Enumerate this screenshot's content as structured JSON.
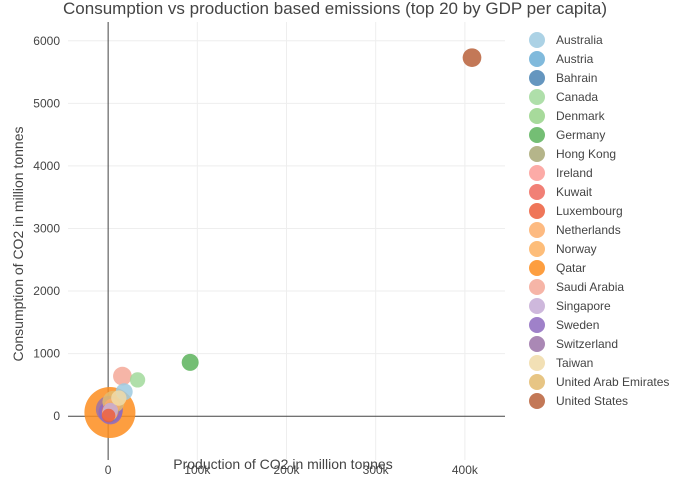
{
  "chart_data": {
    "type": "scatter",
    "title": "Consumption vs production based emissions (top 20 by GDP per capita)",
    "xlabel": "Production of CO2 in million tonnes",
    "ylabel": "Consumption of CO2 in million tonnes",
    "xlim": [
      -45000,
      445000
    ],
    "ylim": [
      -700,
      6300
    ],
    "xticks": [
      0,
      100000,
      200000,
      300000,
      400000
    ],
    "xtick_labels": [
      "0",
      "100k",
      "200k",
      "300k",
      "400k"
    ],
    "yticks": [
      0,
      1000,
      2000,
      3000,
      4000,
      5000,
      6000
    ],
    "ytick_labels": [
      "0",
      "1000",
      "2000",
      "3000",
      "4000",
      "5000",
      "6000"
    ],
    "grid": true,
    "legend_position": "right",
    "series": [
      {
        "name": "Australia",
        "color": "#9ecae1",
        "x": 18000,
        "y": 390,
        "size": 1.0
      },
      {
        "name": "Austria",
        "color": "#6baed6",
        "x": 3000,
        "y": 90,
        "size": 0.9
      },
      {
        "name": "Bahrain",
        "color": "#4a84b4",
        "x": 1500,
        "y": 30,
        "size": 0.9
      },
      {
        "name": "Canada",
        "color": "#a1d99b",
        "x": 33000,
        "y": 580,
        "size": 0.9
      },
      {
        "name": "Denmark",
        "color": "#98d48a",
        "x": 2000,
        "y": 60,
        "size": 0.9
      },
      {
        "name": "Germany",
        "color": "#5cb35c",
        "x": 92000,
        "y": 860,
        "size": 1.0
      },
      {
        "name": "Hong Kong",
        "color": "#a8a876",
        "x": 4000,
        "y": 120,
        "size": 0.9
      },
      {
        "name": "Ireland",
        "color": "#fc9c98",
        "x": 1500,
        "y": 40,
        "size": 0.9
      },
      {
        "name": "Kuwait",
        "color": "#ee6a5e",
        "x": 2500,
        "y": 80,
        "size": 1.0
      },
      {
        "name": "Luxembourg",
        "color": "#ec5e3c",
        "x": 500,
        "y": 10,
        "size": 0.8
      },
      {
        "name": "Netherlands",
        "color": "#fdae6b",
        "x": 4500,
        "y": 160,
        "size": 0.9
      },
      {
        "name": "Norway",
        "color": "#fdb163",
        "x": 2000,
        "y": 50,
        "size": 0.9
      },
      {
        "name": "Qatar",
        "color": "#fd8d1e",
        "x": 2000,
        "y": 60,
        "size": 3.0
      },
      {
        "name": "Saudi Arabia",
        "color": "#f4a898",
        "x": 16000,
        "y": 640,
        "size": 1.1
      },
      {
        "name": "Singapore",
        "color": "#c5acd6",
        "x": 2500,
        "y": 90,
        "size": 0.9
      },
      {
        "name": "Sweden",
        "color": "#8e6bbf",
        "x": 2500,
        "y": 60,
        "size": 1.4
      },
      {
        "name": "Switzerland",
        "color": "#9b73a8",
        "x": 1500,
        "y": 110,
        "size": 1.6
      },
      {
        "name": "Taiwan",
        "color": "#f0dba8",
        "x": 12000,
        "y": 290,
        "size": 0.9
      },
      {
        "name": "United Arab Emirates",
        "color": "#e3bb6e",
        "x": 6000,
        "y": 230,
        "size": 1.3
      },
      {
        "name": "United States",
        "color": "#b8603a",
        "x": 408000,
        "y": 5730,
        "size": 1.1
      }
    ]
  }
}
